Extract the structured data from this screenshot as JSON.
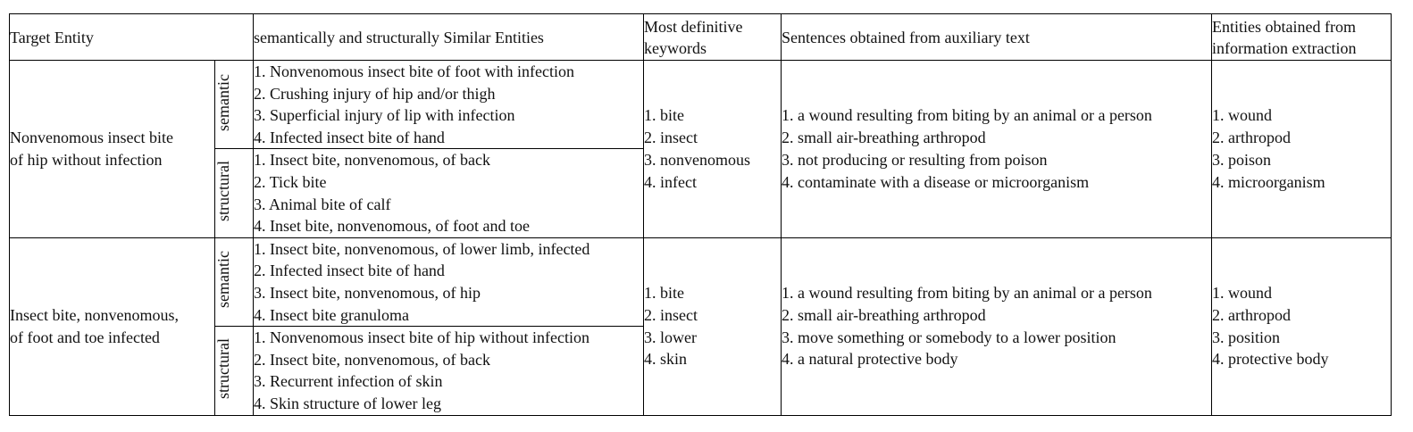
{
  "table": {
    "headers": {
      "target": "Target Entity",
      "similar": "semantically and structurally Similar Entities",
      "keywords_l1": "Most definitive",
      "keywords_l2": "keywords",
      "sentences": "Sentences obtained from auxiliary text",
      "entities_l1": "Entities obtained from",
      "entities_l2": "information extraction"
    },
    "rows": [
      {
        "target_l1": "Nonvenomous insect bite",
        "target_l2": "of hip without infection",
        "semantic_label": "semantic",
        "semantic": [
          "1. Nonvenomous insect bite of foot with infection",
          "2. Crushing injury of hip and/or thigh",
          "3. Superficial injury of lip with infection",
          "4. Infected insect bite of hand"
        ],
        "structural_label": "structural",
        "structural": [
          "1. Insect bite, nonvenomous, of back",
          "2. Tick bite",
          "3. Animal bite of calf",
          "4. Inset bite, nonvenomous, of foot and toe"
        ],
        "keywords": [
          "1. bite",
          "2. insect",
          "3. nonvenomous",
          "4. infect"
        ],
        "sentences": [
          "1. a wound resulting from biting by an animal or a person",
          "2. small air-breathing arthropod",
          "3. not producing or resulting from poison",
          "4. contaminate with a disease or microorganism"
        ],
        "entities": [
          "1. wound",
          "2. arthropod",
          "3. poison",
          "4. microorganism"
        ]
      },
      {
        "target_l1": "Insect bite, nonvenomous,",
        "target_l2": "of foot and toe infected",
        "semantic_label": "semantic",
        "semantic": [
          "1. Insect bite, nonvenomous, of lower limb, infected",
          "2. Infected insect bite of hand",
          "3. Insect bite, nonvenomous, of hip",
          "4. Insect bite granuloma"
        ],
        "structural_label": "structural",
        "structural": [
          "1. Nonvenomous insect bite of hip without infection",
          "2. Insect bite, nonvenomous, of back",
          "3. Recurrent infection of skin",
          "4. Skin structure of lower leg"
        ],
        "keywords": [
          "1. bite",
          "2. insect",
          "3. lower",
          "4. skin"
        ],
        "sentences": [
          "1. a wound resulting from biting by an animal or a person",
          "2. small air-breathing arthropod",
          "3. move something or somebody to a lower position",
          "4. a natural protective body"
        ],
        "entities": [
          "1. wound",
          "2. arthropod",
          "3. position",
          "4. protective body"
        ]
      }
    ]
  }
}
